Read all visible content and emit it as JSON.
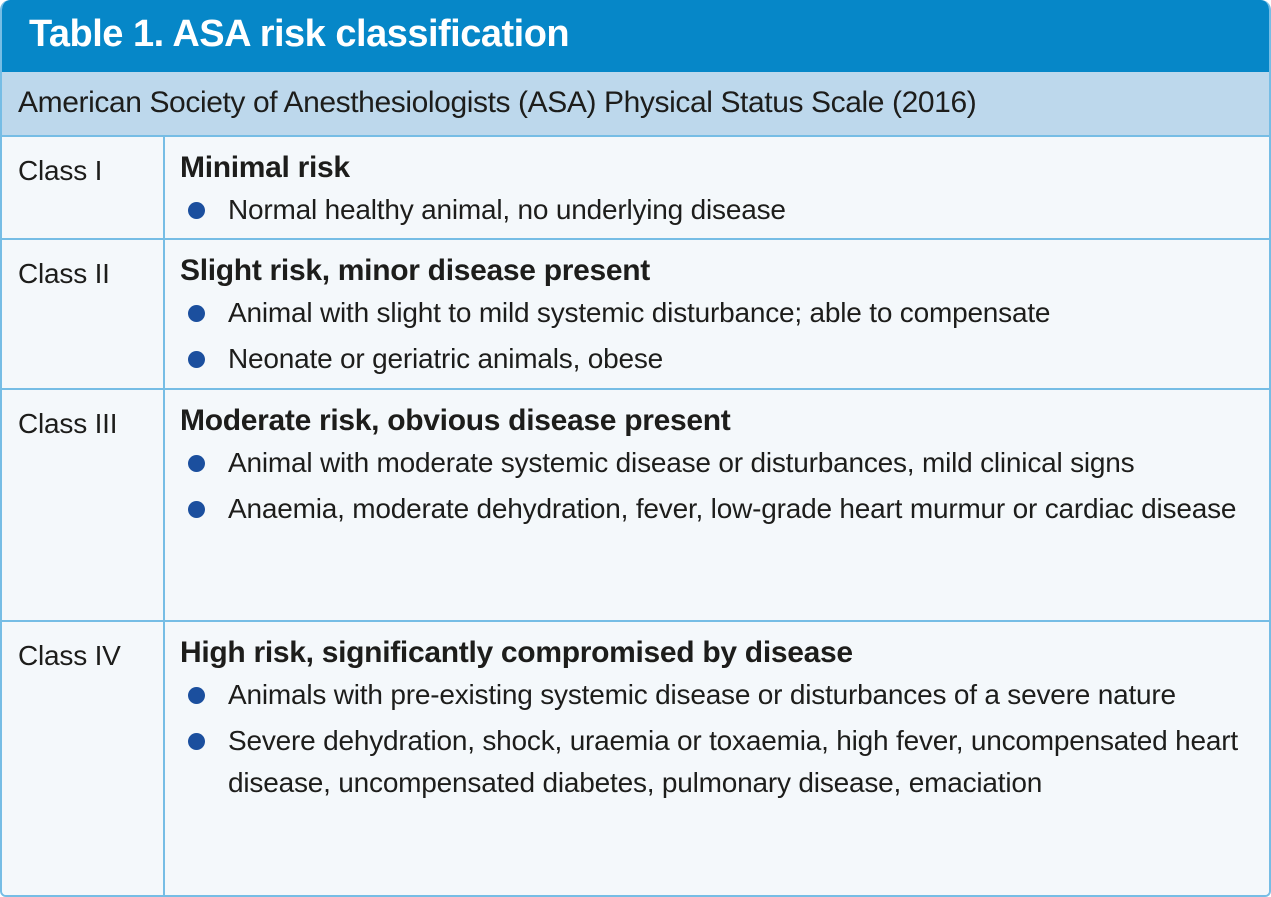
{
  "table": {
    "title": "Table 1. ASA risk classification",
    "subtitle": "American Society of Anesthesiologists (ASA) Physical Status Scale (2016)",
    "rows": [
      {
        "class_label": "Class I",
        "heading": "Minimal risk",
        "bullets": [
          "Normal healthy animal, no underlying disease"
        ]
      },
      {
        "class_label": "Class II",
        "heading": "Slight risk, minor disease present",
        "bullets": [
          "Animal with slight to mild systemic disturbance; able to compensate",
          "Neonate or geriatric animals, obese"
        ]
      },
      {
        "class_label": "Class III",
        "heading": "Moderate risk, obvious disease present",
        "bullets": [
          "Animal with moderate systemic disease or disturbances, mild clinical signs",
          "Anaemia, moderate dehydration, fever, low-grade heart murmur or cardiac disease"
        ]
      },
      {
        "class_label": "Class IV",
        "heading": "High risk, significantly compromised by disease",
        "bullets": [
          "Animals with pre-existing systemic disease or disturbances of a severe nature",
          "Severe dehydration, shock, uraemia or toxaemia, high fever, uncompensated heart disease, uncompensated diabetes, pulmonary disease, emaciation"
        ]
      }
    ],
    "colors": {
      "header_bg": "#0687c8",
      "header_text": "#ffffff",
      "subtitle_bg": "#bdd8ec",
      "row_bg": "#f4f8fb",
      "border": "#76bde5",
      "bullet": "#1b4f9e",
      "text": "#1d1d1b"
    }
  }
}
